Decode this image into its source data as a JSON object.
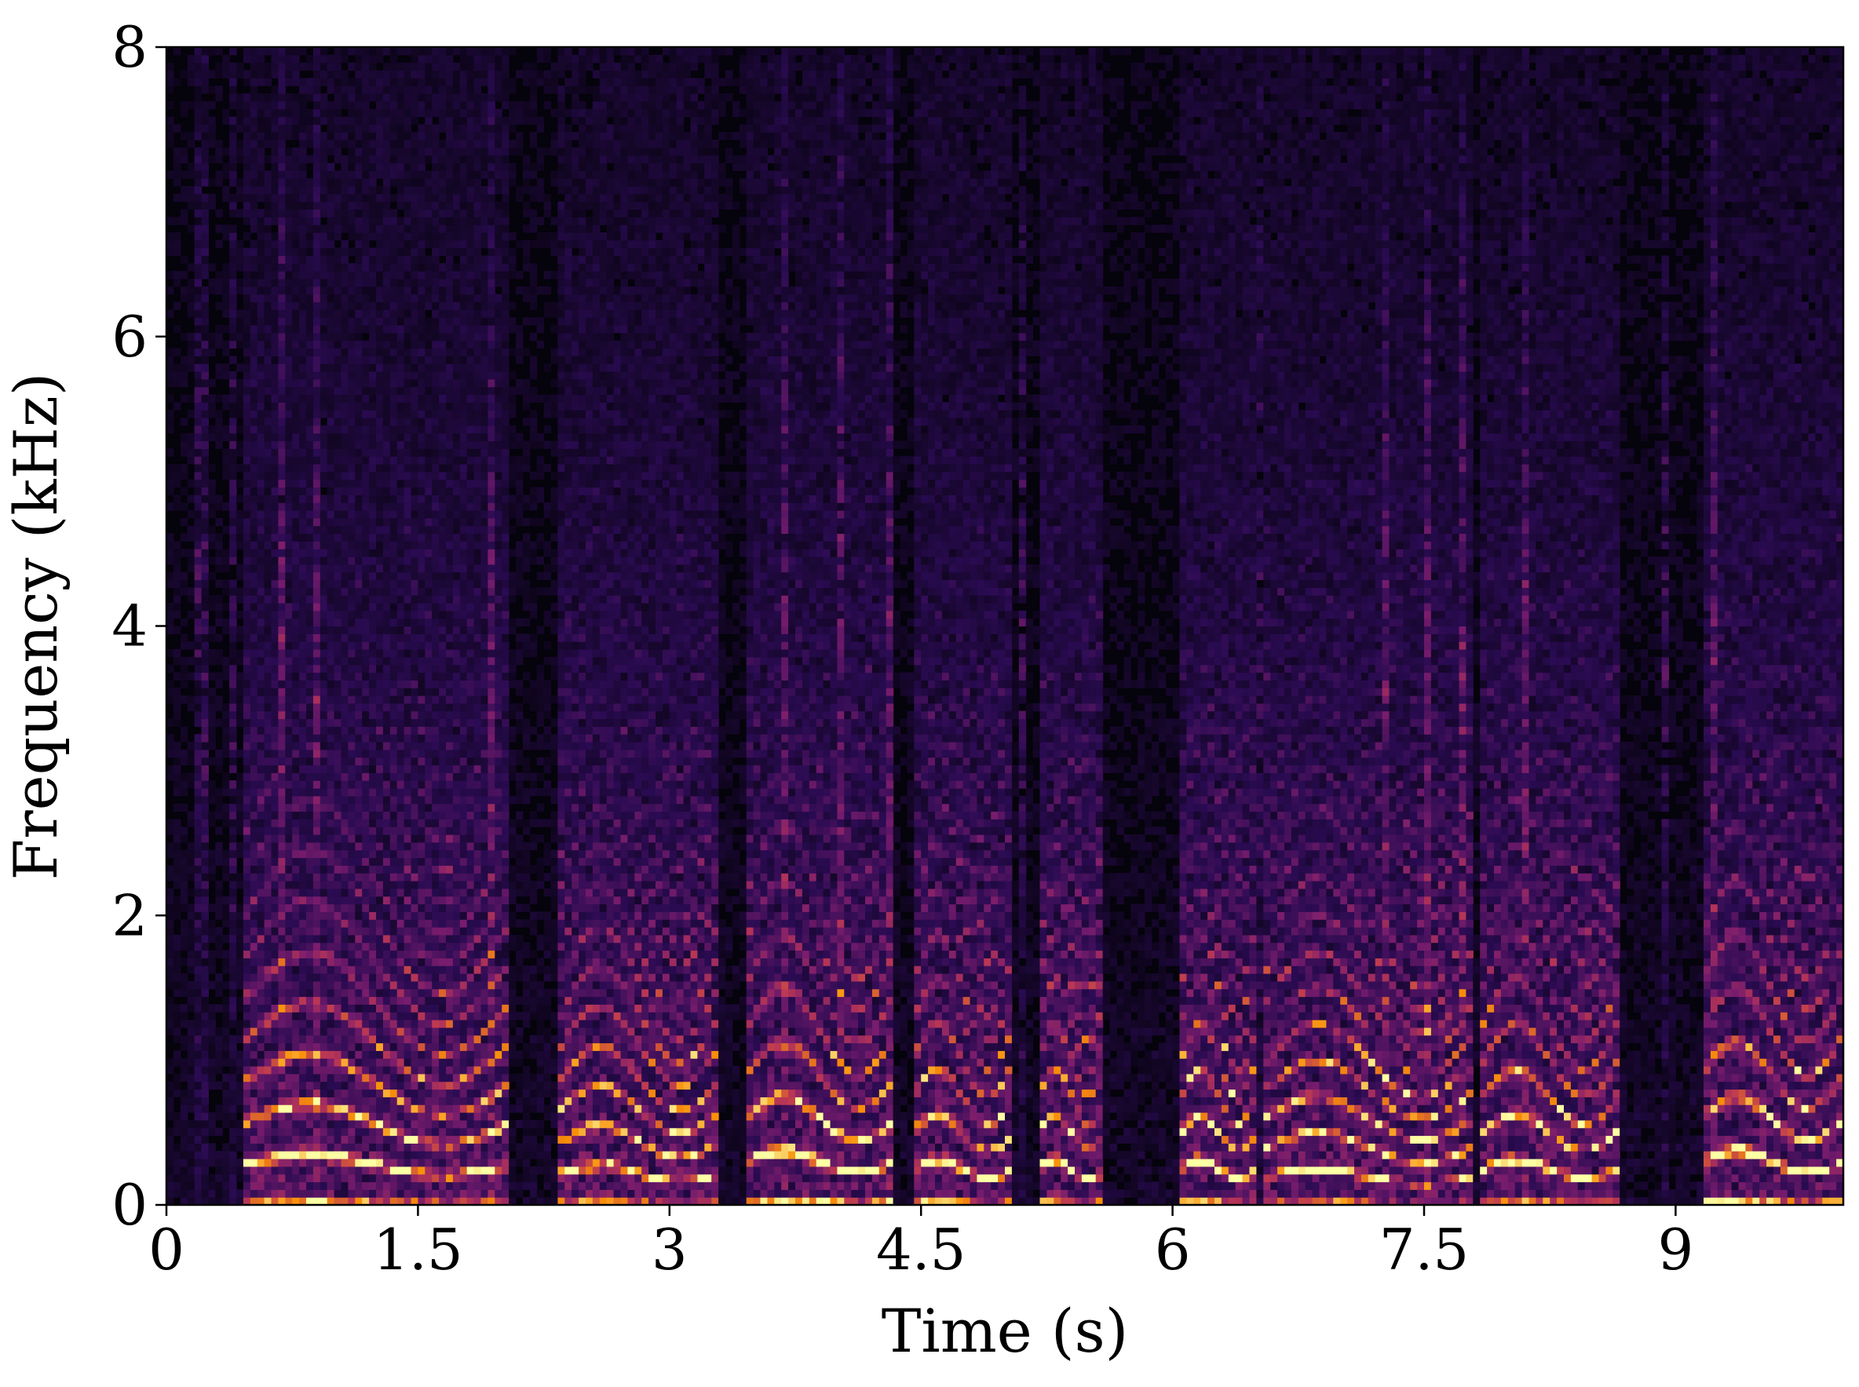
{
  "chart_data": {
    "type": "heatmap",
    "title": "",
    "xlabel": "Time (s)",
    "ylabel": "Frequency (kHz)",
    "xlim": [
      0,
      10
    ],
    "ylim": [
      0,
      8
    ],
    "x_ticks": [
      {
        "value": 0,
        "label": "0"
      },
      {
        "value": 1.5,
        "label": "1.5"
      },
      {
        "value": 3,
        "label": "3"
      },
      {
        "value": 4.5,
        "label": "4.5"
      },
      {
        "value": 6,
        "label": "6"
      },
      {
        "value": 7.5,
        "label": "7.5"
      },
      {
        "value": 9,
        "label": "9"
      }
    ],
    "y_ticks": [
      {
        "value": 0,
        "label": "0"
      },
      {
        "value": 2,
        "label": "2"
      },
      {
        "value": 4,
        "label": "4"
      },
      {
        "value": 6,
        "label": "6"
      },
      {
        "value": 8,
        "label": "8"
      }
    ],
    "colormap": "inferno",
    "grid": false,
    "legend": "none",
    "voiced_segments_s": [
      {
        "start": 0.45,
        "end": 2.05,
        "f0_khz": 0.28
      },
      {
        "start": 2.35,
        "end": 3.3,
        "f0_khz": 0.22
      },
      {
        "start": 3.45,
        "end": 4.35,
        "f0_khz": 0.3
      },
      {
        "start": 4.45,
        "end": 5.05,
        "f0_khz": 0.25
      },
      {
        "start": 5.2,
        "end": 5.6,
        "f0_khz": 0.25
      },
      {
        "start": 6.05,
        "end": 6.5,
        "f0_khz": 0.25
      },
      {
        "start": 6.55,
        "end": 7.8,
        "f0_khz": 0.2
      },
      {
        "start": 7.85,
        "end": 8.65,
        "f0_khz": 0.25
      },
      {
        "start": 9.15,
        "end": 10.0,
        "f0_khz": 0.3
      }
    ],
    "colors": {
      "background": "#05030b",
      "low": "#2a0b52",
      "mid": "#a52c60",
      "high": "#f98e09",
      "peak": "#fcffa4"
    }
  }
}
